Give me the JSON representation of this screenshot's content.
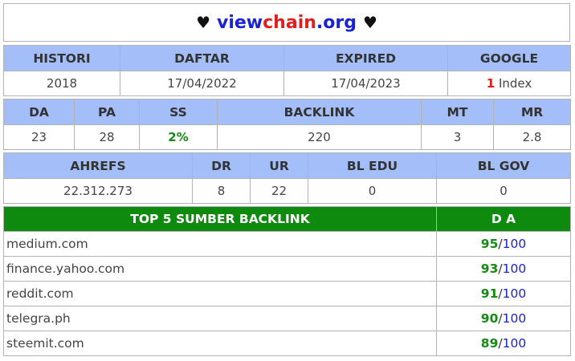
{
  "header": {
    "heart_left": "♥",
    "brand_part1": "view",
    "brand_part2": "chain",
    "brand_part3": ".org",
    "heart_right": "♥"
  },
  "table1": {
    "headers": [
      "HISTORI",
      "DAFTAR",
      "EXPIRED",
      "GOOGLE"
    ],
    "histori": "2018",
    "daftar": "17/04/2022",
    "expired": "17/04/2023",
    "google_count": "1",
    "google_label": " Index"
  },
  "table2": {
    "headers": [
      "DA",
      "PA",
      "SS",
      "BACKLINK",
      "MT",
      "MR"
    ],
    "da": "23",
    "pa": "28",
    "ss": "2%",
    "backlink": "220",
    "mt": "3",
    "mr": "2.8"
  },
  "table3": {
    "headers": [
      "AHREFS",
      "DR",
      "UR",
      "BL EDU",
      "BL GOV"
    ],
    "ahrefs": "22.312.273",
    "dr": "8",
    "ur": "22",
    "bl_edu": "0",
    "bl_gov": "0"
  },
  "table4": {
    "header_left": "TOP 5 SUMBER BACKLINK",
    "header_right": "D A",
    "rows": [
      {
        "site": "medium.com",
        "score": "95",
        "sep": "/",
        "max": "100"
      },
      {
        "site": "finance.yahoo.com",
        "score": "93",
        "sep": "/",
        "max": "100"
      },
      {
        "site": "reddit.com",
        "score": "91",
        "sep": "/",
        "max": "100"
      },
      {
        "site": "telegra.ph",
        "score": "90",
        "sep": "/",
        "max": "100"
      },
      {
        "site": "steemit.com",
        "score": "89",
        "sep": "/",
        "max": "100"
      }
    ]
  },
  "colors": {
    "header_blue": "#a4befa",
    "header_green": "#0e8a0e",
    "accent_red": "#e11d1d",
    "accent_blue": "#1a23d4",
    "accent_green": "#148a14"
  }
}
